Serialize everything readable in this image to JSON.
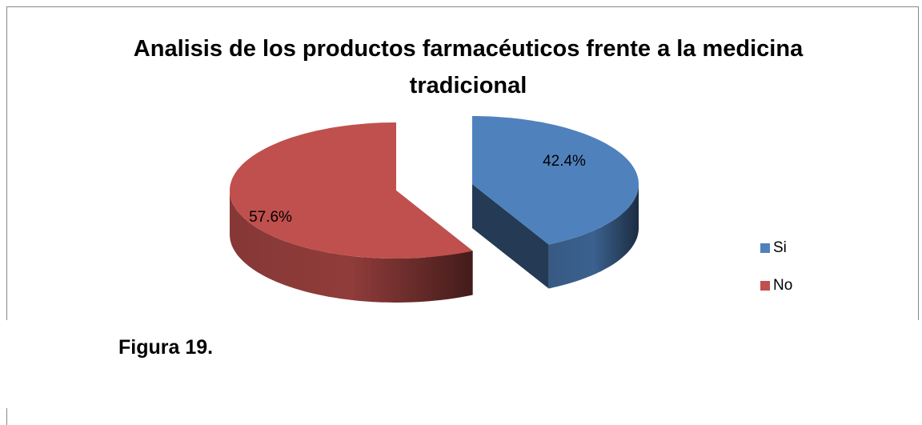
{
  "chart_data": {
    "type": "pie",
    "title": "Analisis de los productos farmacéuticos frente a la medicina tradicional",
    "categories": [
      "Si",
      "No"
    ],
    "values": [
      42.4,
      57.6
    ],
    "value_labels": [
      "42.4%",
      "57.6%"
    ],
    "colors": [
      "#4f81bd",
      "#c0504d"
    ],
    "legend": "right"
  },
  "caption": "Figura 19."
}
